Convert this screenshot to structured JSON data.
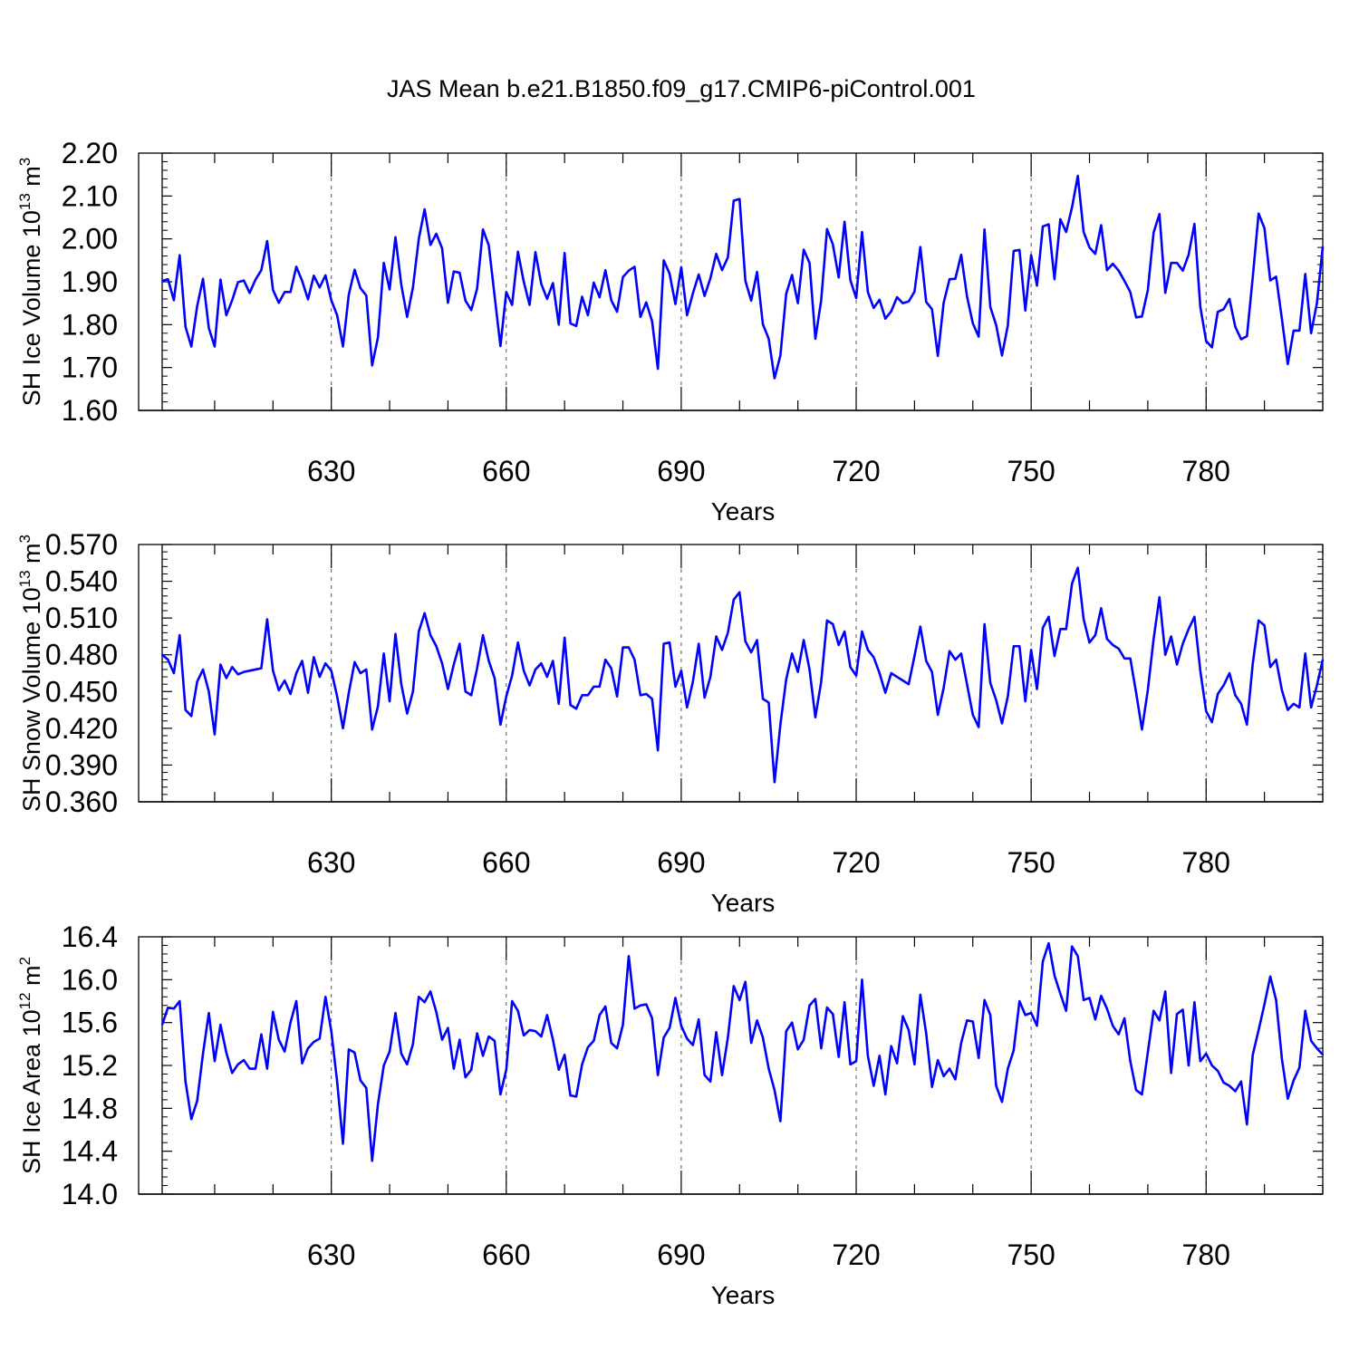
{
  "title": "JAS Mean b.e21.B1850.f09_g17.CMIP6-piControl.001",
  "colors": {
    "series": "#0000ff",
    "axes": "#000000",
    "grid": "#555555",
    "background": "#ffffff"
  },
  "chart_data": [
    {
      "type": "line",
      "xlabel": "Years",
      "ylabel": {
        "prefix": "SH Ice Volume 10",
        "exp": "13",
        "unit": " m",
        "unit_exp": "3"
      },
      "xlim": [
        601,
        800
      ],
      "ylim": [
        1.6,
        2.2
      ],
      "yticks": [
        "1.60",
        "1.70",
        "1.80",
        "1.90",
        "2.00",
        "2.10",
        "2.20"
      ],
      "xticks": [
        "630",
        "660",
        "690",
        "720",
        "750",
        "780"
      ],
      "grid": "vertical dashed at x ticks",
      "series": [
        {
          "name": "SH Ice Volume",
          "color": "#0000ff",
          "x_start": 601,
          "values": [
            1.902,
            1.906,
            1.857,
            1.962,
            1.795,
            1.749,
            1.843,
            1.907,
            1.792,
            1.749,
            1.905,
            1.822,
            1.857,
            1.899,
            1.903,
            1.874,
            1.905,
            1.927,
            1.995,
            1.881,
            1.851,
            1.876,
            1.876,
            1.935,
            1.902,
            1.859,
            1.914,
            1.887,
            1.915,
            1.857,
            1.822,
            1.749,
            1.87,
            1.928,
            1.885,
            1.868,
            1.705,
            1.77,
            1.944,
            1.882,
            2.004,
            1.893,
            1.818,
            1.887,
            2.0,
            2.069,
            1.986,
            2.012,
            1.978,
            1.851,
            1.924,
            1.921,
            1.856,
            1.834,
            1.884,
            2.022,
            1.985,
            1.867,
            1.75,
            1.876,
            1.846,
            1.97,
            1.9,
            1.846,
            1.969,
            1.895,
            1.86,
            1.897,
            1.8,
            1.967,
            1.803,
            1.797,
            1.865,
            1.822,
            1.898,
            1.864,
            1.927,
            1.857,
            1.83,
            1.911,
            1.926,
            1.935,
            1.818,
            1.852,
            1.808,
            1.697,
            1.95,
            1.919,
            1.848,
            1.934,
            1.822,
            1.873,
            1.917,
            1.867,
            1.908,
            1.965,
            1.927,
            1.957,
            2.089,
            2.093,
            1.902,
            1.856,
            1.923,
            1.801,
            1.767,
            1.675,
            1.728,
            1.872,
            1.916,
            1.85,
            1.975,
            1.944,
            1.767,
            1.857,
            2.023,
            1.987,
            1.91,
            2.04,
            1.904,
            1.862,
            2.016,
            1.876,
            1.839,
            1.858,
            1.814,
            1.831,
            1.864,
            1.85,
            1.854,
            1.877,
            1.981,
            1.853,
            1.836,
            1.727,
            1.851,
            1.906,
            1.907,
            1.963,
            1.866,
            1.803,
            1.772,
            2.022,
            1.841,
            1.799,
            1.728,
            1.798,
            1.972,
            1.974,
            1.833,
            1.962,
            1.891,
            2.029,
            2.034,
            1.906,
            2.046,
            2.016,
            2.073,
            2.147,
            2.016,
            1.98,
            1.965,
            2.032,
            1.927,
            1.942,
            1.926,
            1.902,
            1.876,
            1.817,
            1.819,
            1.88,
            2.015,
            2.058,
            1.874,
            1.944,
            1.944,
            1.926,
            1.963,
            2.035,
            1.842,
            1.762,
            1.747,
            1.83,
            1.836,
            1.86,
            1.795,
            1.766,
            1.773,
            1.911,
            2.059,
            2.025,
            1.903,
            1.912,
            1.813,
            1.708,
            1.786,
            1.786,
            1.918,
            1.78,
            1.85,
            1.982
          ]
        }
      ]
    },
    {
      "type": "line",
      "xlabel": "Years",
      "ylabel": {
        "prefix": "SH Snow Volume 10",
        "exp": "13",
        "unit": " m",
        "unit_exp": "3"
      },
      "xlim": [
        601,
        800
      ],
      "ylim": [
        0.36,
        0.57
      ],
      "yticks": [
        "0.360",
        "0.390",
        "0.420",
        "0.450",
        "0.480",
        "0.510",
        "0.540",
        "0.570"
      ],
      "xticks": [
        "630",
        "660",
        "690",
        "720",
        "750",
        "780"
      ],
      "grid": "vertical dashed at x ticks",
      "series": [
        {
          "name": "SH Snow Volume",
          "color": "#0000ff",
          "x_start": 601,
          "values": [
            0.48,
            0.476,
            0.465,
            0.496,
            0.435,
            0.43,
            0.458,
            0.468,
            0.45,
            0.415,
            0.472,
            0.461,
            0.47,
            0.464,
            0.466,
            0.467,
            0.468,
            0.469,
            0.509,
            0.467,
            0.451,
            0.459,
            0.448,
            0.465,
            0.475,
            0.449,
            0.478,
            0.462,
            0.473,
            0.467,
            0.446,
            0.42,
            0.449,
            0.474,
            0.465,
            0.468,
            0.419,
            0.438,
            0.481,
            0.442,
            0.497,
            0.456,
            0.432,
            0.45,
            0.499,
            0.514,
            0.496,
            0.487,
            0.473,
            0.452,
            0.472,
            0.489,
            0.45,
            0.447,
            0.469,
            0.496,
            0.475,
            0.461,
            0.423,
            0.446,
            0.463,
            0.49,
            0.467,
            0.455,
            0.468,
            0.473,
            0.462,
            0.475,
            0.44,
            0.494,
            0.439,
            0.436,
            0.447,
            0.447,
            0.454,
            0.454,
            0.476,
            0.469,
            0.446,
            0.486,
            0.486,
            0.476,
            0.447,
            0.448,
            0.444,
            0.402,
            0.489,
            0.49,
            0.454,
            0.467,
            0.437,
            0.458,
            0.489,
            0.445,
            0.462,
            0.495,
            0.484,
            0.498,
            0.525,
            0.531,
            0.491,
            0.482,
            0.492,
            0.444,
            0.441,
            0.376,
            0.423,
            0.46,
            0.481,
            0.466,
            0.492,
            0.468,
            0.429,
            0.458,
            0.508,
            0.505,
            0.488,
            0.499,
            0.47,
            0.463,
            0.499,
            0.484,
            0.478,
            0.465,
            0.449,
            0.465,
            0.462,
            0.459,
            0.456,
            0.479,
            0.503,
            0.475,
            0.466,
            0.431,
            0.453,
            0.483,
            0.476,
            0.481,
            0.456,
            0.431,
            0.421,
            0.505,
            0.457,
            0.443,
            0.424,
            0.446,
            0.487,
            0.487,
            0.442,
            0.484,
            0.452,
            0.502,
            0.511,
            0.479,
            0.501,
            0.501,
            0.538,
            0.551,
            0.509,
            0.49,
            0.496,
            0.518,
            0.493,
            0.488,
            0.485,
            0.477,
            0.477,
            0.449,
            0.419,
            0.451,
            0.493,
            0.527,
            0.48,
            0.495,
            0.472,
            0.489,
            0.501,
            0.511,
            0.467,
            0.434,
            0.425,
            0.448,
            0.455,
            0.465,
            0.447,
            0.44,
            0.423,
            0.473,
            0.508,
            0.504,
            0.47,
            0.476,
            0.451,
            0.435,
            0.44,
            0.437,
            0.481,
            0.437,
            0.455,
            0.476
          ]
        }
      ]
    },
    {
      "type": "line",
      "xlabel": "Years",
      "ylabel": {
        "prefix": "SH Ice Area 10",
        "exp": "12",
        "unit": " m",
        "unit_exp": "2"
      },
      "xlim": [
        601,
        800
      ],
      "ylim": [
        14.0,
        16.4
      ],
      "yticks": [
        "14.0",
        "14.4",
        "14.8",
        "15.2",
        "15.6",
        "16.0",
        "16.4"
      ],
      "xticks": [
        "630",
        "660",
        "690",
        "720",
        "750",
        "780"
      ],
      "grid": "vertical dashed at x ticks",
      "series": [
        {
          "name": "SH Ice Area",
          "color": "#0000ff",
          "x_start": 601,
          "values": [
            15.58,
            15.74,
            15.73,
            15.8,
            15.05,
            14.7,
            14.87,
            15.31,
            15.69,
            15.24,
            15.58,
            15.32,
            15.13,
            15.21,
            15.25,
            15.17,
            15.17,
            15.49,
            15.17,
            15.7,
            15.44,
            15.33,
            15.6,
            15.8,
            15.22,
            15.36,
            15.42,
            15.45,
            15.84,
            15.52,
            15.05,
            14.47,
            15.35,
            15.32,
            15.06,
            14.99,
            14.31,
            14.84,
            15.2,
            15.33,
            15.69,
            15.31,
            15.21,
            15.4,
            15.84,
            15.79,
            15.89,
            15.7,
            15.44,
            15.55,
            15.17,
            15.44,
            15.09,
            15.16,
            15.5,
            15.29,
            15.47,
            15.43,
            14.93,
            15.16,
            15.8,
            15.71,
            15.48,
            15.53,
            15.52,
            15.47,
            15.67,
            15.44,
            15.16,
            15.3,
            14.92,
            14.91,
            15.21,
            15.37,
            15.43,
            15.67,
            15.75,
            15.41,
            15.36,
            15.58,
            16.22,
            15.73,
            15.76,
            15.77,
            15.64,
            15.11,
            15.46,
            15.55,
            15.83,
            15.57,
            15.45,
            15.39,
            15.63,
            15.11,
            15.05,
            15.51,
            15.11,
            15.46,
            15.94,
            15.81,
            15.98,
            15.41,
            15.62,
            15.46,
            15.17,
            14.97,
            14.68,
            15.52,
            15.6,
            15.35,
            15.44,
            15.76,
            15.82,
            15.36,
            15.74,
            15.68,
            15.28,
            15.79,
            15.21,
            15.24,
            16.0,
            15.29,
            15.01,
            15.29,
            14.93,
            15.38,
            15.22,
            15.66,
            15.53,
            15.21,
            15.86,
            15.5,
            15.0,
            15.25,
            15.1,
            15.17,
            15.07,
            15.41,
            15.62,
            15.61,
            15.27,
            15.81,
            15.67,
            15.01,
            14.86,
            15.17,
            15.34,
            15.8,
            15.67,
            15.69,
            15.57,
            16.17,
            16.34,
            16.04,
            15.87,
            15.71,
            16.31,
            16.22,
            15.81,
            15.83,
            15.63,
            15.85,
            15.73,
            15.57,
            15.49,
            15.64,
            15.24,
            14.97,
            14.93,
            15.32,
            15.71,
            15.62,
            15.89,
            15.13,
            15.68,
            15.72,
            15.2,
            15.79,
            15.24,
            15.31,
            15.2,
            15.15,
            15.04,
            15.01,
            14.96,
            15.05,
            14.65,
            15.3,
            15.53,
            15.77,
            16.03,
            15.81,
            15.26,
            14.89,
            15.06,
            15.18,
            15.71,
            15.43,
            15.36,
            15.3
          ]
        }
      ]
    }
  ]
}
